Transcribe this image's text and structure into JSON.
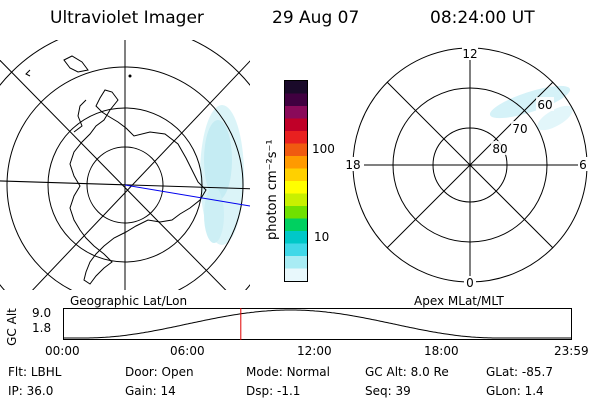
{
  "header": {
    "instrument": "Ultraviolet Imager",
    "date": "29 Aug 07",
    "time": "08:24:00 UT"
  },
  "left_map": {
    "caption": "Geographic Lat/Lon"
  },
  "right_map": {
    "caption": "Apex MLat/MLT",
    "lat_labels": [
      "60",
      "70",
      "80"
    ],
    "mlt_labels": {
      "top": "12",
      "left": "18",
      "right": "6",
      "bottom": "0"
    }
  },
  "colorbar": {
    "unit_label": "photon cm⁻²s⁻¹",
    "ticks": [
      "100",
      "10"
    ],
    "scale": "log",
    "colors_top_to_bottom": [
      "#1a0a2a",
      "#400040",
      "#8a0a5a",
      "#c00028",
      "#e82020",
      "#f05a10",
      "#ff9a00",
      "#ffd000",
      "#ffff00",
      "#c8f000",
      "#70e000",
      "#00d060",
      "#00c8c8",
      "#40d8e8",
      "#a8ecf4",
      "#e8f8fc"
    ]
  },
  "altitude_plot": {
    "ylabel": "GC Alt",
    "y_ticks": [
      "9.0",
      "1.8"
    ],
    "x_ticks": [
      "00:00",
      "06:00",
      "12:00",
      "18:00",
      "23:59"
    ],
    "current_time_hours": 8.4,
    "marker_color": "#e00000"
  },
  "params": {
    "filter_label": "Flt:",
    "filter_value": "LBHL",
    "door_label": "Door:",
    "door_value": "Open",
    "mode_label": "Mode:",
    "mode_value": "Normal",
    "gcalt_label": "GC Alt:",
    "gcalt_value": "8.0 Re",
    "glat_label": "GLat:",
    "glat_value": "-85.7",
    "ip_label": "IP:",
    "ip_value": "36.0",
    "gain_label": "Gain:",
    "gain_value": "14",
    "dsp_label": "Dsp:",
    "dsp_value": "-1.1",
    "seq_label": "Seq:",
    "seq_value": "39",
    "glon_label": "GLon:",
    "glon_value": "1.4"
  }
}
